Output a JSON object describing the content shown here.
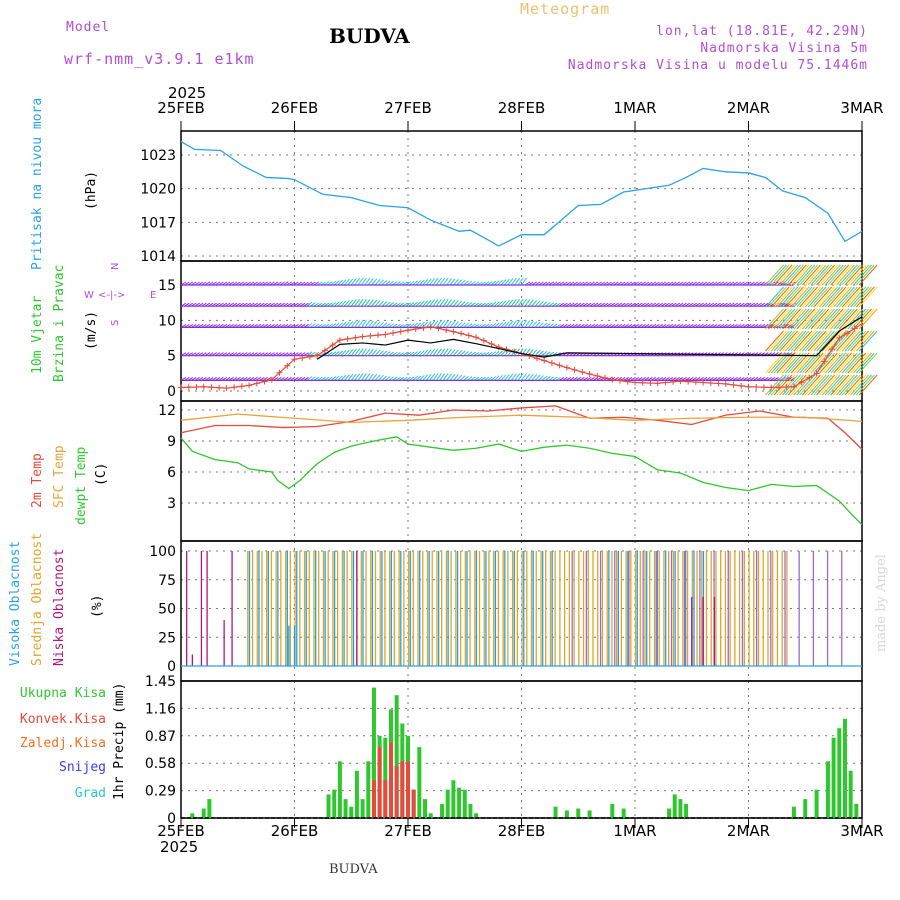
{
  "header": {
    "model_label": "Model",
    "model_name": "wrf-nmm_v3.9.1 e1km",
    "title": "BUDVA",
    "meteogram": "Meteogram",
    "lonlat": "lon,lat (18.81E, 42.29N)",
    "altitude": "Nadmorska Visina 5m",
    "model_altitude": "Nadmorska Visina u modelu 75.1446m",
    "year_top": "2025",
    "year_bottom": "2025",
    "footer": "BUDVA",
    "watermark": "made by Angel"
  },
  "dates": [
    "25FEB",
    "26FEB",
    "27FEB",
    "28FEB",
    "1MAR",
    "2MAR",
    "3MAR"
  ],
  "colors": {
    "pressure": "#29a3e8",
    "t2m": "#e64a3c",
    "sfc": "#e8a33a",
    "dewpt": "#2ec82e",
    "high_cloud": "#1aa3e6",
    "mid_cloud": "#e0a52a",
    "low_cloud": "#b0167a",
    "total_precip": "#2ec82e",
    "conv_precip": "#e64a3c",
    "snow": "#3c3ce6",
    "freezing": "#f07020",
    "hail": "#28c8c8",
    "wind_purple": "#8a2be2",
    "wind_teal": "#20c8a0"
  },
  "panels": {
    "pressure": {
      "labels": [
        "Pritisak na nivou mora",
        "(hPa)"
      ],
      "ticks": [
        "1023",
        "1020",
        "1017",
        "1014"
      ]
    },
    "wind": {
      "labels": [
        "10m Vjetar",
        "Brzina i Pravac",
        "(m/s)"
      ],
      "ticks": [
        "15",
        "10",
        "5",
        "0"
      ],
      "compass": {
        "n": "N",
        "s": "S",
        "w": "W",
        "e": "E",
        "arrows": "<-|->"
      }
    },
    "temperature": {
      "labels": [
        "2m Temp",
        "SFC Temp",
        "dewpt Temp",
        "(C)"
      ],
      "ticks": [
        "12",
        "9",
        "6",
        "3"
      ]
    },
    "cloud": {
      "labels": [
        "Visoka Oblacnost",
        "Srednja Oblacnost",
        "Niska Oblacnost",
        "(%)"
      ],
      "ticks": [
        "100",
        "75",
        "50",
        "25",
        "0"
      ]
    },
    "precip": {
      "legend": [
        "Ukupna Kisa",
        "Konvek.Kisa",
        "Zaledj.Kisa",
        "Snijeg",
        "Grad"
      ],
      "label": "1hr Precip (mm)",
      "ticks": [
        "1.45",
        "1.16",
        "0.87",
        "0.58",
        "0.29",
        "0"
      ]
    }
  },
  "chart_data": [
    {
      "type": "line",
      "panel": "pressure",
      "series": [
        {
          "name": "Pritisak na nivou mora",
          "x": [
            0,
            0.12,
            0.35,
            0.55,
            0.75,
            0.95,
            1.0,
            1.25,
            1.5,
            1.75,
            2.0,
            2.2,
            2.45,
            2.55,
            2.8,
            3.0,
            3.2,
            3.35,
            3.5,
            3.7,
            3.9,
            4.1,
            4.3,
            4.45,
            4.6,
            4.8,
            5.0,
            5.15,
            5.3,
            5.5,
            5.7,
            5.85,
            6.0
          ],
          "y": [
            1024.2,
            1023.5,
            1023.4,
            1022.0,
            1021.0,
            1020.9,
            1020.8,
            1019.5,
            1019.2,
            1018.5,
            1018.3,
            1017.2,
            1016.2,
            1016.3,
            1014.9,
            1015.9,
            1015.9,
            1017.2,
            1018.5,
            1018.6,
            1019.7,
            1020.0,
            1020.3,
            1021.0,
            1021.8,
            1021.5,
            1021.4,
            1021.0,
            1019.8,
            1019.2,
            1017.8,
            1015.3,
            1016.2
          ]
        }
      ],
      "ylim": [
        1014,
        1025
      ],
      "ylabel": "(hPa)",
      "grid": true
    },
    {
      "type": "line",
      "panel": "wind",
      "series": [
        {
          "name": "wind speed",
          "x": [
            0,
            0.2,
            0.4,
            0.6,
            0.8,
            1.0,
            1.2,
            1.4,
            1.6,
            1.8,
            2.0,
            2.2,
            2.4,
            2.6,
            2.8,
            3.0,
            3.2,
            3.4,
            3.6,
            3.8,
            4.0,
            4.2,
            4.4,
            4.6,
            4.8,
            5.0,
            5.2,
            5.4,
            5.6,
            5.8,
            6.0
          ],
          "y": [
            0.5,
            0.6,
            0.4,
            0.8,
            1.6,
            4.5,
            5.0,
            7.2,
            7.7,
            8.0,
            8.6,
            9.1,
            8.4,
            7.6,
            6.2,
            5.3,
            4.3,
            3.3,
            2.4,
            1.6,
            1.2,
            1.1,
            1.4,
            1.2,
            1.0,
            0.6,
            0.5,
            0.6,
            2.5,
            7.5,
            9.5
          ]
        },
        {
          "name": "10m speed",
          "x": [
            1.2,
            1.4,
            1.6,
            1.8,
            2.0,
            2.2,
            2.4,
            2.6,
            2.8,
            3.0,
            3.2,
            3.4,
            5.6,
            5.8,
            6.0
          ],
          "y": [
            4.5,
            6.6,
            6.8,
            6.5,
            7.2,
            6.8,
            7.3,
            6.7,
            6.0,
            5.3,
            4.8,
            5.4,
            5.0,
            8.5,
            10.5
          ]
        }
      ],
      "ylim": [
        -0.5,
        13
      ],
      "ylabel": "(m/s)",
      "grid": true
    },
    {
      "type": "line",
      "panel": "temperature",
      "series": [
        {
          "name": "2m Temp",
          "x": [
            0,
            0.3,
            0.6,
            0.9,
            1.2,
            1.5,
            1.8,
            2.1,
            2.4,
            2.7,
            3.0,
            3.3,
            3.6,
            3.9,
            4.2,
            4.5,
            4.8,
            5.1,
            5.4,
            5.7,
            5.85,
            6.0
          ],
          "y": [
            9.8,
            10.5,
            10.5,
            10.3,
            10.4,
            10.9,
            11.7,
            11.5,
            12.0,
            11.9,
            12.2,
            12.4,
            11.2,
            11.3,
            11.0,
            10.6,
            11.5,
            11.9,
            11.3,
            11.2,
            9.8,
            8.2
          ]
        },
        {
          "name": "SFC Temp",
          "x": [
            0,
            0.5,
            1.0,
            1.5,
            2.0,
            2.5,
            3.0,
            3.5,
            4.0,
            4.5,
            5.0,
            5.5,
            6.0
          ],
          "y": [
            11.0,
            11.6,
            11.2,
            10.8,
            11.0,
            11.3,
            11.5,
            11.3,
            11.0,
            11.2,
            11.3,
            11.3,
            10.9
          ]
        },
        {
          "name": "dewpt Temp",
          "x": [
            0,
            0.1,
            0.3,
            0.5,
            0.6,
            0.8,
            0.85,
            0.95,
            1.05,
            1.2,
            1.35,
            1.5,
            1.7,
            1.9,
            2.0,
            2.2,
            2.4,
            2.6,
            2.8,
            3.0,
            3.2,
            3.4,
            3.6,
            3.8,
            4.0,
            4.2,
            4.4,
            4.6,
            4.8,
            5.0,
            5.2,
            5.4,
            5.6,
            5.8,
            5.9,
            6.0
          ],
          "y": [
            9.3,
            8.0,
            7.2,
            6.9,
            6.3,
            6.0,
            5.2,
            4.4,
            5.2,
            6.8,
            7.9,
            8.5,
            9.0,
            9.4,
            8.7,
            8.4,
            8.1,
            8.3,
            8.7,
            8.0,
            8.4,
            8.6,
            8.3,
            7.8,
            7.5,
            6.2,
            5.9,
            5.0,
            4.5,
            4.2,
            4.8,
            4.6,
            4.7,
            3.2,
            2.0,
            0.9
          ]
        }
      ],
      "ylim": [
        0,
        12.5
      ],
      "ylabel": "(C)",
      "grid": true
    },
    {
      "type": "bar",
      "panel": "cloud",
      "series": [
        {
          "name": "Visoka Oblacnost",
          "note": "mostly 100% from 25FEB 14h to 28FEB 06h and from 28FEB 18h to 1MAR 12h"
        },
        {
          "name": "Srednja Oblacnost",
          "note": "mostly 100% from 25FEB 14h to 3MAR"
        },
        {
          "name": "Niska Oblacnost",
          "note": "scattered 100% bars early 25FEB and between 1MAR and 3MAR"
        }
      ],
      "ylim": [
        0,
        100
      ],
      "ylabel": "(%)"
    },
    {
      "type": "bar",
      "panel": "precip",
      "series": [
        {
          "name": "Ukupna Kisa",
          "x": [
            0.1,
            0.2,
            0.25,
            1.3,
            1.35,
            1.4,
            1.45,
            1.5,
            1.55,
            1.6,
            1.65,
            1.7,
            1.75,
            1.8,
            1.85,
            1.9,
            1.95,
            2.0,
            2.05,
            2.1,
            2.15,
            2.2,
            2.3,
            2.35,
            2.4,
            2.45,
            2.5,
            2.55,
            2.6,
            3.3,
            3.4,
            3.5,
            3.6,
            3.8,
            3.9,
            4.3,
            4.35,
            4.4,
            4.45,
            5.4,
            5.5,
            5.6,
            5.7,
            5.75,
            5.8,
            5.85,
            5.9,
            5.95
          ],
          "y": [
            0.05,
            0.1,
            0.2,
            0.25,
            0.3,
            0.6,
            0.2,
            0.12,
            0.5,
            0.2,
            0.6,
            1.38,
            0.87,
            0.85,
            1.15,
            1.3,
            1.0,
            0.87,
            0.3,
            0.75,
            0.2,
            0.05,
            0.15,
            0.3,
            0.4,
            0.32,
            0.3,
            0.15,
            0.05,
            0.12,
            0.08,
            0.1,
            0.08,
            0.15,
            0.1,
            0.1,
            0.25,
            0.2,
            0.15,
            0.12,
            0.2,
            0.3,
            0.6,
            0.85,
            0.95,
            1.05,
            0.5,
            0.15
          ]
        },
        {
          "name": "Konvek.Kisa",
          "x": [
            1.7,
            1.75,
            1.8,
            1.85,
            1.9,
            1.95,
            2.0,
            2.05
          ],
          "y": [
            0.4,
            0.75,
            0.4,
            0.8,
            0.55,
            0.6,
            0.6,
            0.3
          ]
        }
      ],
      "ylim": [
        0,
        1.45
      ],
      "ylabel": "1hr Precip (mm)",
      "grid": true
    }
  ]
}
